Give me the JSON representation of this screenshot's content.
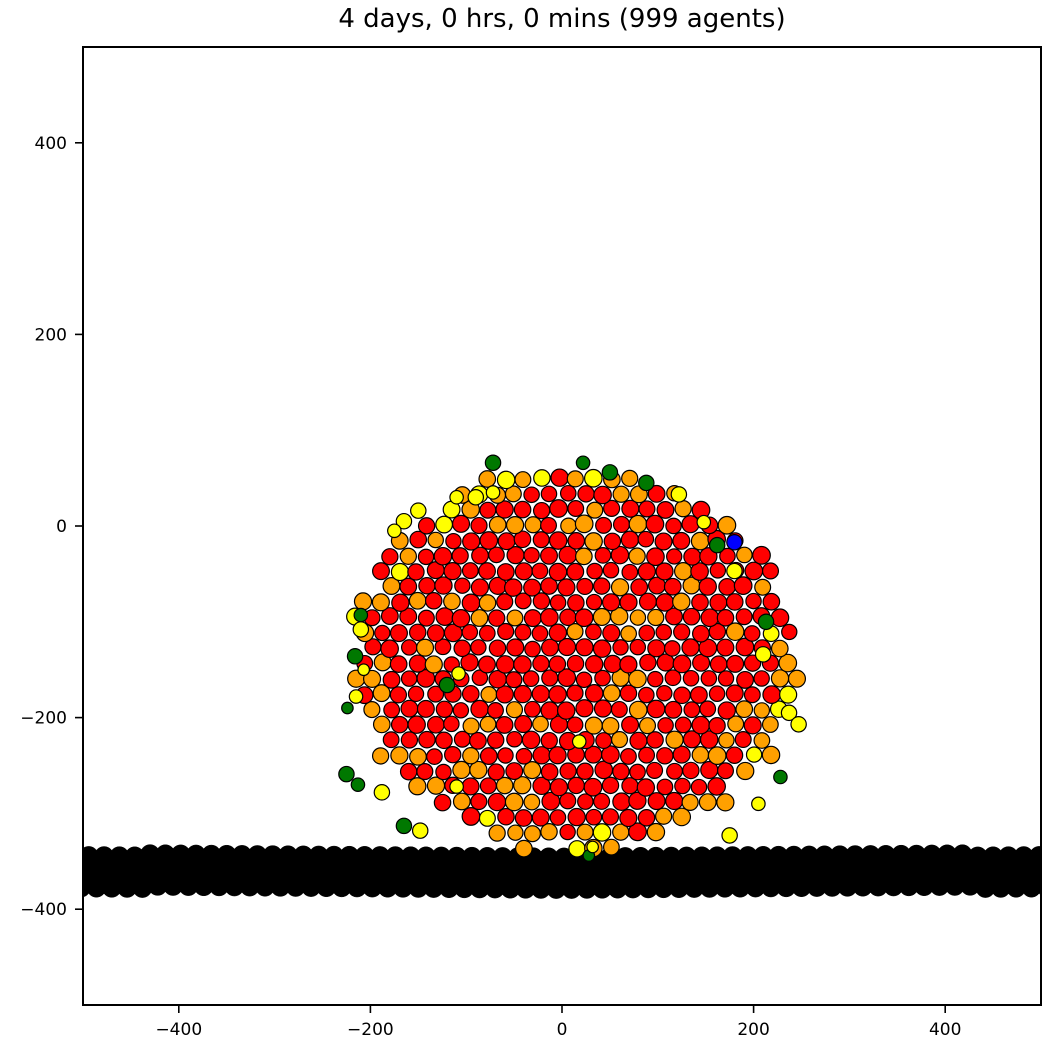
{
  "chart_data": {
    "type": "scatter",
    "title": "4 days, 0 hrs, 0 mins (999 agents)",
    "xlabel": "",
    "ylabel": "",
    "xlim": [
      -500,
      500
    ],
    "ylim": [
      -500,
      500
    ],
    "grid": false,
    "legend": null,
    "x_ticks": [
      -400,
      -200,
      0,
      200,
      400
    ],
    "y_ticks": [
      -400,
      -200,
      0,
      200,
      400
    ],
    "x_tick_labels": [
      "−400",
      "−200",
      "0",
      "200",
      "400"
    ],
    "y_tick_labels": [
      "−400",
      "−200",
      "0",
      "200",
      "400"
    ],
    "colors": {
      "red": "#ff0000",
      "orange": "#ffa000",
      "yellow": "#ffff00",
      "green": "#007800",
      "blue": "#0000ff",
      "substrate": "#000000",
      "edge": "#000000"
    },
    "agent_count": 999,
    "agent_radius": 9,
    "cluster": {
      "center": [
        -20,
        -150
      ],
      "approx_extent_x": [
        -225,
        250
      ],
      "approx_extent_y": [
        -345,
        68
      ],
      "dominant_color": "red",
      "secondary_color": "orange"
    },
    "substrate": {
      "description": "rows of black agents forming a slab beneath the cluster",
      "y_center": -362,
      "y_thickness": 45,
      "x_range": [
        -500,
        500
      ],
      "radius": 10
    },
    "notable_agents": [
      {
        "x": 180,
        "y": -17,
        "color": "blue",
        "r": 8
      },
      {
        "x": 162,
        "y": -20,
        "color": "green",
        "r": 8
      },
      {
        "x": -72,
        "y": 66,
        "color": "green",
        "r": 8
      },
      {
        "x": 22,
        "y": 66,
        "color": "green",
        "r": 7
      },
      {
        "x": 50,
        "y": 56,
        "color": "green",
        "r": 8
      },
      {
        "x": 88,
        "y": 45,
        "color": "green",
        "r": 8
      },
      {
        "x": 213,
        "y": -100,
        "color": "green",
        "r": 8
      },
      {
        "x": -210,
        "y": -93,
        "color": "green",
        "r": 7
      },
      {
        "x": -216,
        "y": -136,
        "color": "green",
        "r": 8
      },
      {
        "x": -224,
        "y": -190,
        "color": "green",
        "r": 6
      },
      {
        "x": -225,
        "y": -259,
        "color": "green",
        "r": 8
      },
      {
        "x": -213,
        "y": -270,
        "color": "green",
        "r": 7
      },
      {
        "x": -120,
        "y": -166,
        "color": "green",
        "r": 8
      },
      {
        "x": -165,
        "y": -313,
        "color": "green",
        "r": 8
      },
      {
        "x": 228,
        "y": -262,
        "color": "green",
        "r": 7
      },
      {
        "x": 28,
        "y": -344,
        "color": "green",
        "r": 6
      },
      {
        "x": -150,
        "y": 16,
        "color": "yellow",
        "r": 8
      },
      {
        "x": -165,
        "y": 5,
        "color": "yellow",
        "r": 8
      },
      {
        "x": -175,
        "y": -5,
        "color": "yellow",
        "r": 7
      },
      {
        "x": -110,
        "y": 30,
        "color": "yellow",
        "r": 7
      },
      {
        "x": -90,
        "y": 30,
        "color": "yellow",
        "r": 8
      },
      {
        "x": -72,
        "y": 35,
        "color": "yellow",
        "r": 7
      },
      {
        "x": 122,
        "y": 33,
        "color": "yellow",
        "r": 8
      },
      {
        "x": 148,
        "y": 4,
        "color": "yellow",
        "r": 7
      },
      {
        "x": 180,
        "y": -47,
        "color": "yellow",
        "r": 8
      },
      {
        "x": 210,
        "y": -134,
        "color": "yellow",
        "r": 8
      },
      {
        "x": 237,
        "y": -195,
        "color": "yellow",
        "r": 8
      },
      {
        "x": 247,
        "y": -207,
        "color": "yellow",
        "r": 8
      },
      {
        "x": 205,
        "y": -290,
        "color": "yellow",
        "r": 7
      },
      {
        "x": 175,
        "y": -323,
        "color": "yellow",
        "r": 8
      },
      {
        "x": -210,
        "y": -108,
        "color": "yellow",
        "r": 8
      },
      {
        "x": -207,
        "y": -150,
        "color": "yellow",
        "r": 6
      },
      {
        "x": -215,
        "y": -178,
        "color": "yellow",
        "r": 7
      },
      {
        "x": -188,
        "y": -278,
        "color": "yellow",
        "r": 8
      },
      {
        "x": -148,
        "y": -318,
        "color": "yellow",
        "r": 8
      },
      {
        "x": -110,
        "y": -272,
        "color": "yellow",
        "r": 7
      },
      {
        "x": -108,
        "y": -154,
        "color": "yellow",
        "r": 7
      },
      {
        "x": 18,
        "y": -225,
        "color": "yellow",
        "r": 7
      },
      {
        "x": 32,
        "y": -335,
        "color": "yellow",
        "r": 6
      }
    ]
  }
}
